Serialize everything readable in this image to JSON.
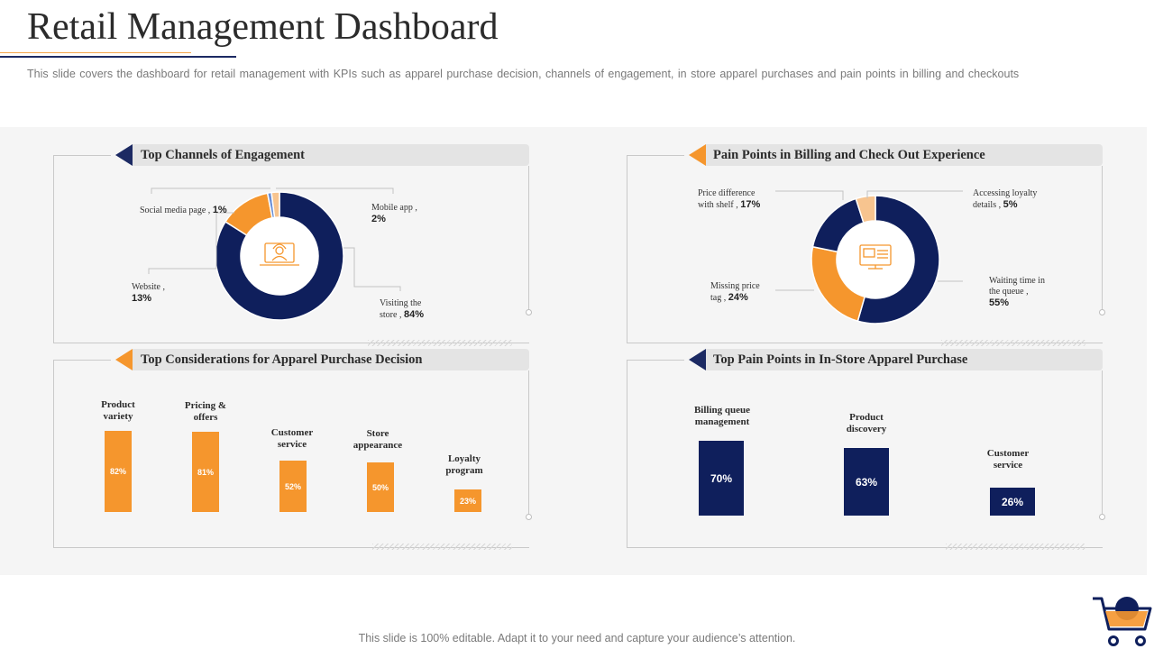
{
  "page": {
    "title": "Retail Management Dashboard",
    "subtitle": "This slide covers the dashboard for retail management with KPIs such as apparel purchase decision, channels of engagement, in store apparel purchases and pain points in billing and checkouts",
    "footer": "This slide is 100% editable. Adapt it to your need and capture your audience’s attention."
  },
  "colors": {
    "navy": "#0f1f5c",
    "orange": "#f5962d",
    "light_orange": "#f7c48f",
    "blue": "#6b8fd6",
    "dark_navy": "#1c2a63"
  },
  "panels": {
    "channels": {
      "title": "Top Channels of Engagement",
      "icon": "laptop-support-icon",
      "labels": [
        {
          "text": "Social media page ,",
          "value": "1%"
        },
        {
          "text": "Mobile app ,",
          "value": "2%"
        },
        {
          "text": "Website ,",
          "value": "13%"
        },
        {
          "text": "Visiting the store ,",
          "value": "84%"
        }
      ]
    },
    "billing": {
      "title": "Pain Points in Billing and Check Out Experience",
      "icon": "pos-terminal-icon",
      "labels": [
        {
          "text": "Price difference with shelf ,",
          "value": "17%"
        },
        {
          "text": "Accessing loyalty details ,",
          "value": "5%"
        },
        {
          "text": "Missing price tag ,",
          "value": "24%"
        },
        {
          "text": "Waiting time in the queue ,",
          "value": "55%"
        }
      ]
    },
    "apparel_decision": {
      "title": "Top Considerations for Apparel Purchase Decision",
      "categories": [
        "Product variety",
        "Pricing & offers",
        "Customer service",
        "Store appearance",
        "Loyalty program"
      ],
      "value_labels": [
        "82%",
        "81%",
        "52%",
        "50%",
        "23%"
      ]
    },
    "instore": {
      "title": "Top Pain Points in In-Store Apparel Purchase",
      "categories": [
        "Billing queue management",
        "Product discovery",
        "Customer service"
      ],
      "value_labels": [
        "70%",
        "63%",
        "26%"
      ]
    }
  },
  "chart_data": [
    {
      "type": "pie",
      "style": "donut",
      "title": "Top Channels of Engagement",
      "categories": [
        "Visiting the store",
        "Website",
        "Social media page",
        "Mobile app"
      ],
      "values": [
        84,
        13,
        1,
        2
      ],
      "colors": [
        "#0f1f5c",
        "#f5962d",
        "#6b8fd6",
        "#f7c48f"
      ]
    },
    {
      "type": "pie",
      "style": "donut",
      "title": "Pain Points in Billing and Check Out Experience",
      "categories": [
        "Waiting time in the queue",
        "Missing price tag",
        "Price difference with shelf",
        "Accessing loyalty details"
      ],
      "values": [
        55,
        24,
        17,
        5
      ],
      "colors": [
        "#0f1f5c",
        "#f5962d",
        "#0f1f5c",
        "#f7c48f"
      ]
    },
    {
      "type": "bar",
      "title": "Top Considerations for Apparel Purchase Decision",
      "categories": [
        "Product variety",
        "Pricing & offers",
        "Customer service",
        "Store appearance",
        "Loyalty program"
      ],
      "values": [
        82,
        81,
        52,
        50,
        23
      ],
      "ylim": [
        0,
        100
      ]
    },
    {
      "type": "bar",
      "title": "Top Pain Points in In-Store Apparel Purchase",
      "categories": [
        "Billing queue management",
        "Product discovery",
        "Customer service"
      ],
      "values": [
        70,
        63,
        26
      ],
      "ylim": [
        0,
        100
      ]
    }
  ]
}
